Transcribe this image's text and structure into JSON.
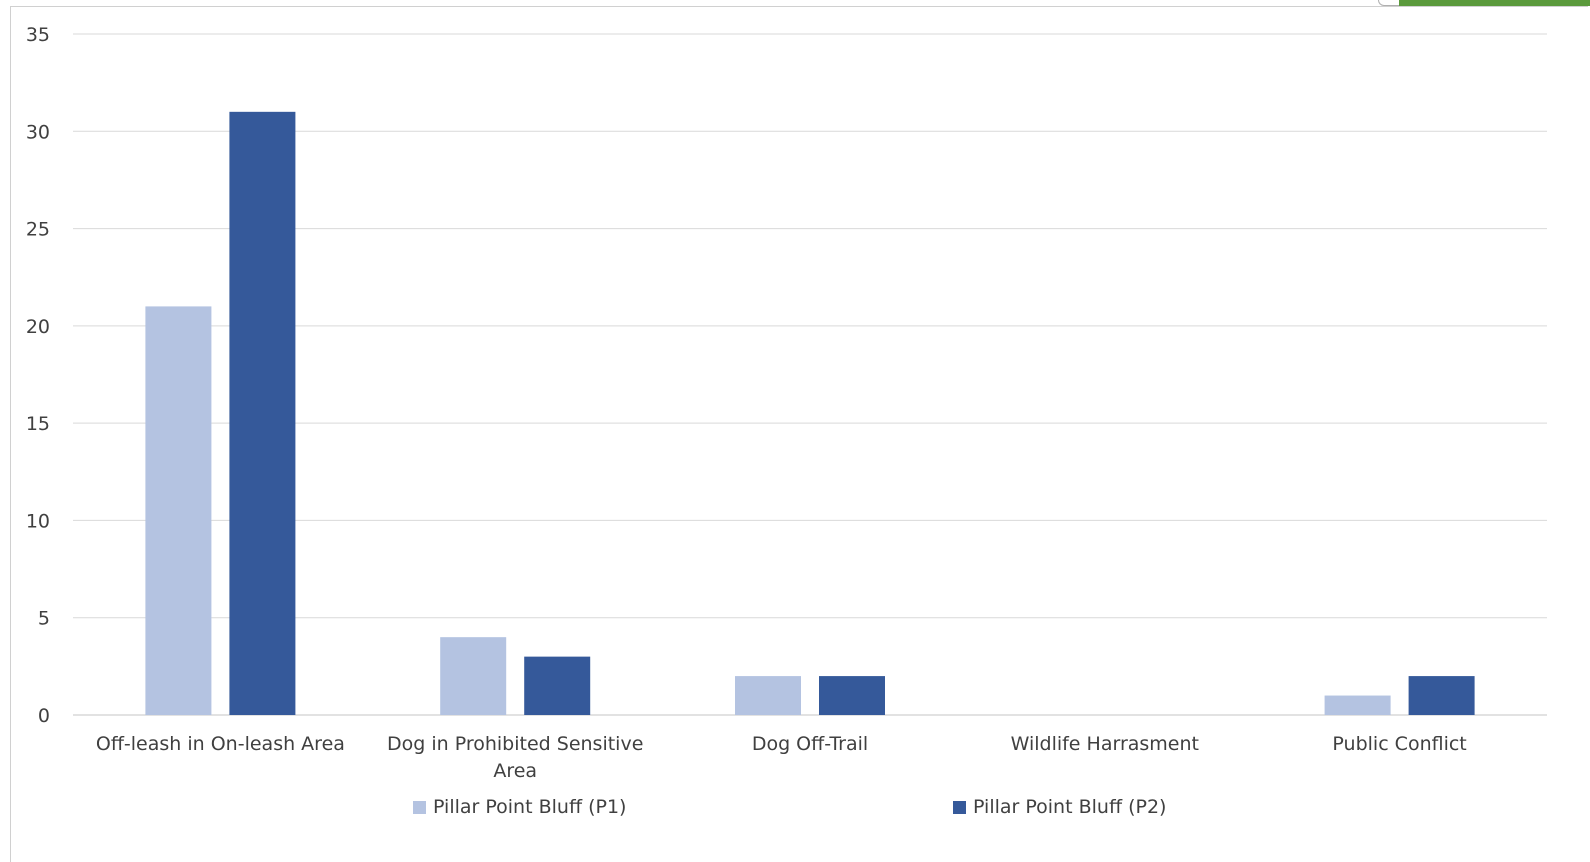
{
  "chart_data": {
    "type": "bar",
    "categories": [
      "Off-leash in On-leash Area",
      "Dog in Prohibited Sensitive Area",
      "Dog Off-Trail",
      "Wildlife Harrasment",
      "Public Conflict"
    ],
    "category_lines": [
      [
        "Off-leash in On-leash Area"
      ],
      [
        "Dog in Prohibited Sensitive",
        "Area"
      ],
      [
        "Dog Off-Trail"
      ],
      [
        "Wildlife Harrasment"
      ],
      [
        "Public Conflict"
      ]
    ],
    "series": [
      {
        "name": "Pillar Point Bluff (P1)",
        "values": [
          21,
          4,
          2,
          0,
          1
        ],
        "color": "#b4c3e1"
      },
      {
        "name": "Pillar Point Bluff (P2)",
        "values": [
          31,
          3,
          2,
          0,
          2
        ],
        "color": "#35599a"
      }
    ],
    "ylim": [
      0,
      35
    ],
    "yticks": [
      "0",
      "5",
      "10",
      "15",
      "20",
      "25",
      "30",
      "35"
    ],
    "grid": true,
    "gridline_color": "#d9d9d9",
    "legend_position": "bottom",
    "title": "",
    "xlabel": "",
    "ylabel": ""
  }
}
